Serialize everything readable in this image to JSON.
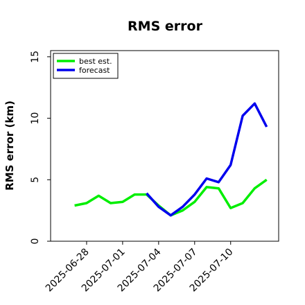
{
  "chart_data": {
    "type": "line",
    "title": "RMS error",
    "xlabel": "",
    "ylabel": "RMS error (km)",
    "x": [
      "2025-06-27",
      "2025-06-28",
      "2025-06-29",
      "2025-06-30",
      "2025-07-01",
      "2025-07-02",
      "2025-07-03",
      "2025-07-04",
      "2025-07-05",
      "2025-07-06",
      "2025-07-07",
      "2025-07-08",
      "2025-07-09",
      "2025-07-10",
      "2025-07-11",
      "2025-07-12",
      "2025-07-13"
    ],
    "xticks": [
      "2025-06-28",
      "2025-07-01",
      "2025-07-04",
      "2025-07-07",
      "2025-07-10"
    ],
    "xlim": [
      "2025-06-25",
      "2025-07-14"
    ],
    "ylim": [
      0,
      15.5
    ],
    "yticks": [
      0,
      5,
      10,
      15
    ],
    "grid": false,
    "legend_position": "top-left",
    "series": [
      {
        "name": "best est.",
        "color": "#00ee00",
        "values": [
          2.9,
          3.1,
          3.7,
          3.1,
          3.2,
          3.8,
          3.8,
          2.9,
          2.1,
          2.5,
          3.2,
          4.4,
          4.3,
          2.7,
          3.1,
          4.3,
          5.0
        ]
      },
      {
        "name": "forecast",
        "color": "#0000ee",
        "values": [
          null,
          null,
          null,
          null,
          null,
          null,
          3.9,
          2.8,
          2.1,
          2.8,
          3.8,
          5.1,
          4.8,
          6.2,
          10.2,
          11.2,
          9.3
        ]
      }
    ]
  }
}
